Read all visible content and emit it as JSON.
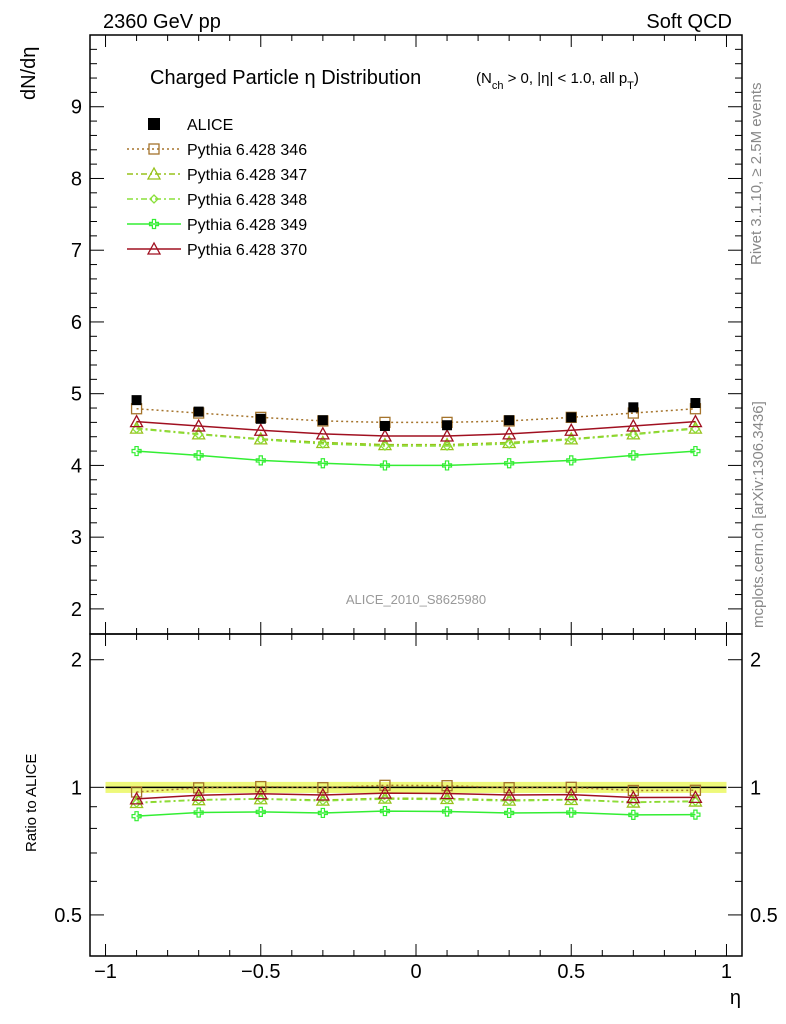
{
  "header": {
    "left": "2360 GeV pp",
    "right": "Soft QCD"
  },
  "side_labels": {
    "rivet": "Rivet 3.1.10, ≥ 2.5M events",
    "mcplots": "mcplots.cern.ch [arXiv:1306.3436]"
  },
  "chart_data": {
    "type": "line",
    "title": "Charged Particle η Distribution",
    "title_cut": "(N",
    "title_cut_sub": "ch",
    "title_cut_rest": " > 0, |η| < 1.0, all p",
    "title_cut_sub2": "T",
    "title_cut_end": ")",
    "analysis_id": "ALICE_2010_S8625980",
    "xlabel": "η",
    "ylabel": "dN/dη",
    "ratio_ylabel": "Ratio to ALICE",
    "xlim": [
      -1.05,
      1.05
    ],
    "ylim_main": [
      1.65,
      10.0
    ],
    "ylim_ratio": [
      0.4,
      2.3
    ],
    "x_ticks": [
      -1,
      -0.5,
      0,
      0.5,
      1
    ],
    "x_tick_labels": [
      "−1",
      "−0.5",
      "0",
      "0.5",
      "1"
    ],
    "y_ticks_main": [
      2,
      3,
      4,
      5,
      6,
      7,
      8,
      9
    ],
    "y_tick_labels_main": [
      "2",
      "3",
      "4",
      "5",
      "6",
      "7",
      "8",
      "9"
    ],
    "y_ticks_ratio": [
      0.5,
      1,
      2
    ],
    "y_tick_labels_ratio": [
      "0.5",
      "1",
      "2"
    ],
    "x": [
      -0.9,
      -0.7,
      -0.5,
      -0.3,
      -0.1,
      0.1,
      0.3,
      0.5,
      0.7,
      0.9
    ],
    "data": {
      "name": "ALICE",
      "values": [
        4.91,
        4.75,
        4.65,
        4.63,
        4.55,
        4.56,
        4.63,
        4.67,
        4.81,
        4.87
      ],
      "color": "#000000"
    },
    "band_color": "#eef97a",
    "series": [
      {
        "name": "Pythia 6.428 346",
        "color": "#a5742c",
        "dash": "2,3",
        "marker": "square",
        "values": [
          4.79,
          4.73,
          4.67,
          4.62,
          4.6,
          4.6,
          4.62,
          4.67,
          4.73,
          4.79
        ],
        "ratio": [
          0.975,
          0.997,
          1.004,
          0.998,
          1.011,
          1.009,
          0.998,
          1.0,
          0.983,
          0.984
        ]
      },
      {
        "name": "Pythia 6.428 347",
        "color": "#97c21b",
        "dash": "6,3,2,3",
        "marker": "triangle",
        "values": [
          4.52,
          4.44,
          4.37,
          4.32,
          4.29,
          4.29,
          4.32,
          4.37,
          4.44,
          4.52
        ],
        "ratio": [
          0.921,
          0.935,
          0.94,
          0.933,
          0.943,
          0.941,
          0.933,
          0.936,
          0.923,
          0.928
        ]
      },
      {
        "name": "Pythia 6.428 348",
        "color": "#8ae03a",
        "dash": "6,3,2,3",
        "marker": "diamond",
        "values": [
          4.51,
          4.43,
          4.36,
          4.3,
          4.27,
          4.27,
          4.3,
          4.36,
          4.43,
          4.51
        ],
        "ratio": [
          0.918,
          0.933,
          0.938,
          0.929,
          0.938,
          0.936,
          0.929,
          0.934,
          0.921,
          0.926
        ]
      },
      {
        "name": "Pythia 6.428 349",
        "color": "#33ee33",
        "dash": "",
        "marker": "cross",
        "values": [
          4.2,
          4.14,
          4.07,
          4.03,
          4.0,
          4.0,
          4.03,
          4.07,
          4.14,
          4.2
        ],
        "ratio": [
          0.855,
          0.872,
          0.875,
          0.87,
          0.879,
          0.877,
          0.87,
          0.872,
          0.861,
          0.862
        ]
      },
      {
        "name": "Pythia 6.428 370",
        "color": "#a01020",
        "dash": "",
        "marker": "triangle",
        "values": [
          4.61,
          4.55,
          4.49,
          4.44,
          4.41,
          4.41,
          4.44,
          4.49,
          4.55,
          4.61
        ],
        "ratio": [
          0.939,
          0.958,
          0.966,
          0.959,
          0.969,
          0.967,
          0.959,
          0.961,
          0.946,
          0.947
        ]
      }
    ]
  }
}
